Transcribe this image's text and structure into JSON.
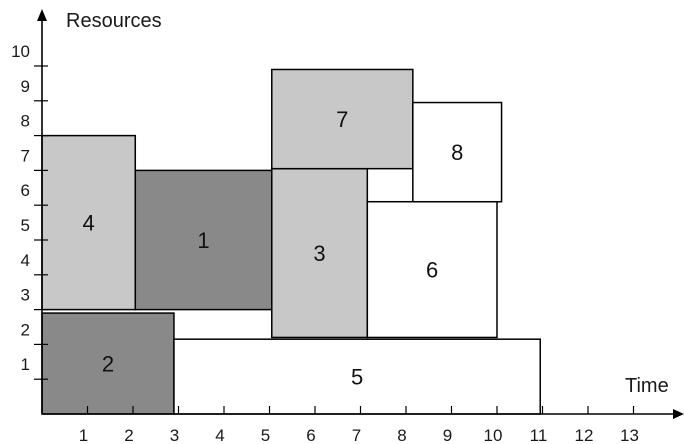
{
  "chart_data": {
    "type": "diagram",
    "xlabel": "Time",
    "ylabel": "Resources",
    "x_ticks": [
      1,
      2,
      3,
      4,
      5,
      6,
      7,
      8,
      9,
      10,
      11,
      12,
      13
    ],
    "y_ticks": [
      1,
      2,
      3,
      4,
      5,
      6,
      7,
      8,
      9,
      10
    ],
    "xlim": [
      0,
      14.3
    ],
    "ylim": [
      0,
      11.3
    ],
    "colors": {
      "dark": "#898989",
      "light": "#c8c8c8",
      "white": "#ffffff"
    },
    "tasks": [
      {
        "label": "1",
        "x": 2.05,
        "width": 3.0,
        "y": 3.0,
        "height": 4.0,
        "fill": "dark"
      },
      {
        "label": "2",
        "x": 0.0,
        "width": 2.9,
        "y": 0.0,
        "height": 2.9,
        "fill": "dark"
      },
      {
        "label": "3",
        "x": 5.05,
        "width": 2.1,
        "y": 2.2,
        "height": 4.85,
        "fill": "light"
      },
      {
        "label": "4",
        "x": 0.0,
        "width": 2.05,
        "y": 3.0,
        "height": 5.0,
        "fill": "light"
      },
      {
        "label": "5",
        "x": 2.9,
        "width": 8.05,
        "y": 0.0,
        "height": 2.15,
        "fill": "white"
      },
      {
        "label": "6",
        "x": 7.15,
        "width": 2.85,
        "y": 2.2,
        "height": 3.9,
        "fill": "white"
      },
      {
        "label": "7",
        "x": 5.05,
        "width": 3.1,
        "y": 7.05,
        "height": 2.85,
        "fill": "light"
      },
      {
        "label": "8",
        "x": 8.15,
        "width": 1.95,
        "y": 6.1,
        "height": 2.85,
        "fill": "white"
      }
    ]
  }
}
